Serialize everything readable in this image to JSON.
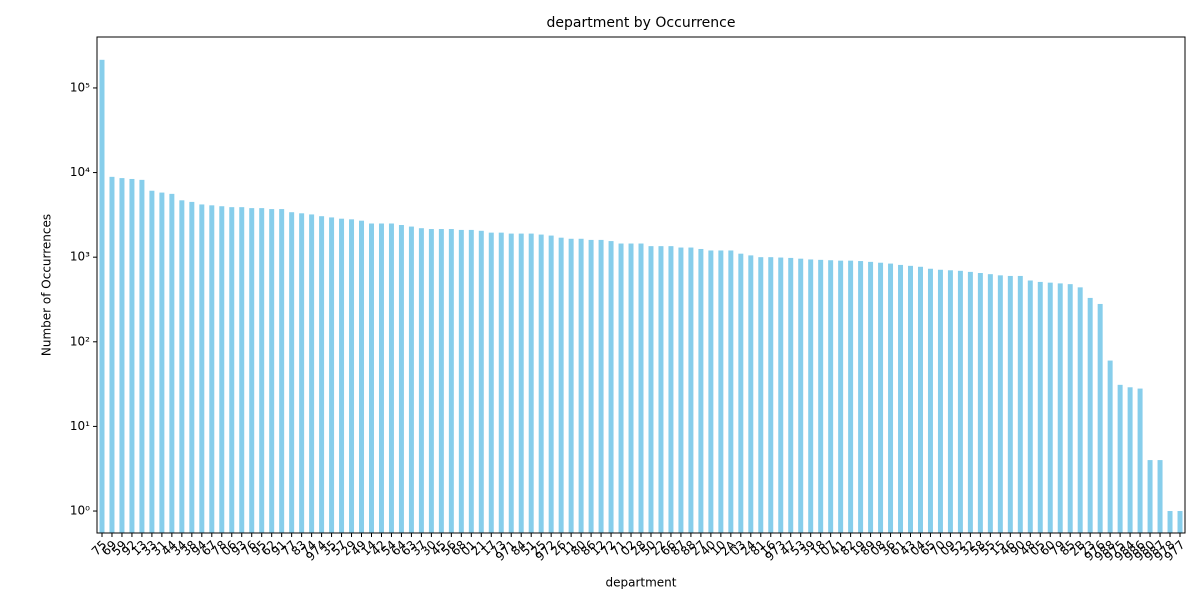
{
  "chart_data": {
    "type": "bar",
    "title": "department by Occurrence",
    "xlabel": "department",
    "ylabel": "Number of Occurrences",
    "color": "#87ceeb",
    "log_scale": true,
    "grid": false,
    "ylim": [
      0.55,
      400000
    ],
    "yticks": [
      {
        "value": 1,
        "label": "10⁰"
      },
      {
        "value": 10,
        "label": "10¹"
      },
      {
        "value": 100,
        "label": "10²"
      },
      {
        "value": 1000,
        "label": "10³"
      },
      {
        "value": 10000,
        "label": "10⁴"
      },
      {
        "value": 100000,
        "label": "10⁵"
      }
    ],
    "categories": [
      "75",
      "69",
      "59",
      "92",
      "13",
      "33",
      "31",
      "44",
      "34",
      "38",
      "94",
      "67",
      "78",
      "06",
      "93",
      "76",
      "95",
      "62",
      "91",
      "77",
      "83",
      "74",
      "974",
      "35",
      "57",
      "29",
      "49",
      "14",
      "42",
      "54",
      "64",
      "63",
      "37",
      "30",
      "45",
      "56",
      "68",
      "01",
      "21",
      "17",
      "73",
      "971",
      "84",
      "51",
      "25",
      "972",
      "26",
      "11",
      "80",
      "86",
      "12",
      "72",
      "71",
      "02",
      "28",
      "50",
      "22",
      "66",
      "87",
      "88",
      "27",
      "40",
      "10",
      "2A",
      "03",
      "24",
      "81",
      "16",
      "973",
      "47",
      "53",
      "39",
      "18",
      "07",
      "41",
      "82",
      "19",
      "89",
      "08",
      "36",
      "61",
      "43",
      "04",
      "65",
      "70",
      "09",
      "52",
      "32",
      "58",
      "55",
      "15",
      "46",
      "90",
      "48",
      "05",
      "60",
      "79",
      "85",
      "2B",
      "23",
      "976",
      "988",
      "975",
      "984",
      "986",
      "980",
      "987",
      "978",
      "977"
    ],
    "values": [
      215000,
      8900,
      8600,
      8400,
      8200,
      6100,
      5800,
      5600,
      4700,
      4500,
      4200,
      4100,
      4000,
      3900,
      3900,
      3800,
      3800,
      3700,
      3700,
      3400,
      3300,
      3200,
      3050,
      2950,
      2850,
      2800,
      2700,
      2500,
      2500,
      2500,
      2400,
      2300,
      2200,
      2150,
      2150,
      2150,
      2100,
      2100,
      2050,
      1950,
      1950,
      1900,
      1900,
      1900,
      1850,
      1800,
      1700,
      1650,
      1650,
      1600,
      1600,
      1550,
      1450,
      1450,
      1450,
      1350,
      1350,
      1350,
      1300,
      1300,
      1250,
      1200,
      1200,
      1200,
      1100,
      1050,
      1000,
      1000,
      990,
      980,
      960,
      940,
      930,
      920,
      910,
      910,
      900,
      880,
      860,
      840,
      810,
      790,
      770,
      730,
      710,
      700,
      690,
      670,
      650,
      630,
      610,
      600,
      600,
      530,
      510,
      500,
      490,
      480,
      440,
      330,
      280,
      60,
      31,
      29,
      28,
      4,
      4,
      1,
      1
    ]
  }
}
